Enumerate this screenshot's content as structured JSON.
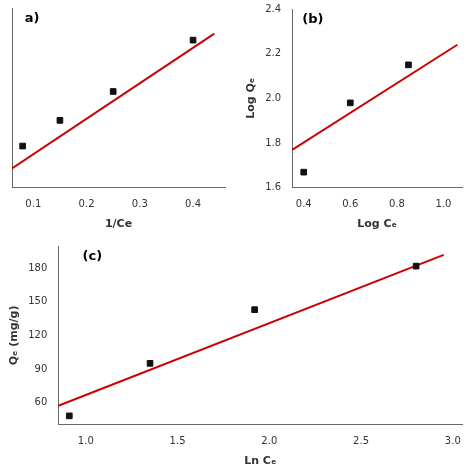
{
  "chart_data": [
    {
      "type": "scatter",
      "annotation": "a)",
      "xlabel": "1/Ce",
      "series": [
        {
          "type": "scatter",
          "marker": "square",
          "color": "#111111",
          "x": [
            0.08,
            0.15,
            0.25,
            0.4
          ],
          "values": [
            0.75,
            0.83,
            0.92,
            1.08
          ]
        },
        {
          "type": "line",
          "color": "#cc0000",
          "x": [
            0.06,
            0.44
          ],
          "values": [
            0.68,
            1.1
          ]
        }
      ],
      "xlim": [
        0.06,
        0.46
      ],
      "ylim": [
        0.62,
        1.18
      ],
      "xticks": [
        0.1,
        0.2,
        0.3,
        0.4
      ],
      "tick_labels": "x",
      "grid": false
    },
    {
      "type": "scatter",
      "annotation": "(b)",
      "xlabel": "Log Cₑ",
      "ylabel": "Log Qₑ",
      "series": [
        {
          "type": "scatter",
          "marker": "square",
          "color": "#111111",
          "x": [
            0.4,
            0.6,
            0.85
          ],
          "values": [
            1.67,
            1.98,
            2.15
          ]
        },
        {
          "type": "line",
          "color": "#cc0000",
          "x": [
            0.35,
            1.06
          ],
          "values": [
            1.77,
            2.24
          ]
        }
      ],
      "xlim": [
        0.35,
        1.08
      ],
      "ylim": [
        1.6,
        2.4
      ],
      "xticks": [
        0.4,
        0.6,
        0.8,
        {
          "value": 1.0,
          "label": "1.0"
        }
      ],
      "yticks": [
        1.6,
        1.8,
        {
          "value": 2.0,
          "label": "2.0"
        },
        2.2,
        2.4
      ],
      "grid": false
    },
    {
      "type": "scatter",
      "annotation": "(c)",
      "xlabel": "Ln Cₑ",
      "ylabel": "Qₑ (mg/g)",
      "series": [
        {
          "type": "scatter",
          "marker": "square",
          "color": "#111111",
          "x": [
            0.91,
            1.35,
            1.92,
            2.8
          ],
          "values": [
            48,
            95,
            143,
            182
          ]
        },
        {
          "type": "line",
          "color": "#cc0000",
          "x": [
            0.85,
            2.95
          ],
          "values": [
            57,
            192
          ]
        }
      ],
      "xlim": [
        0.85,
        3.05
      ],
      "ylim": [
        40,
        200
      ],
      "xticks": [
        {
          "value": 1.0,
          "label": "1.0"
        },
        1.5,
        {
          "value": 2.0,
          "label": "2.0"
        },
        2.5,
        {
          "value": 3.0,
          "label": "3.0"
        }
      ],
      "yticks": [
        60,
        90,
        120,
        150,
        180
      ],
      "grid": false
    }
  ]
}
